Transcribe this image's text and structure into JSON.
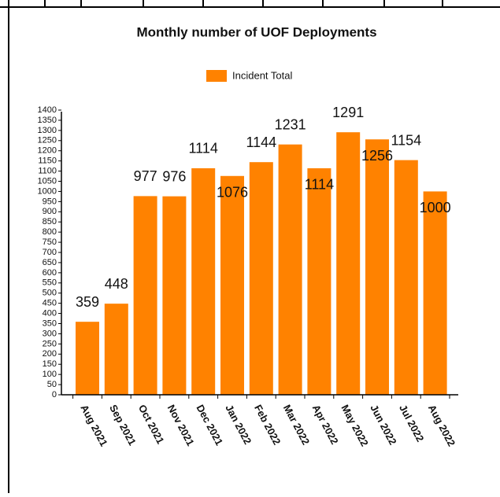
{
  "chart_data": {
    "type": "bar",
    "title": "Monthly number of UOF Deployments",
    "categories": [
      "Aug 2021",
      "Sep 2021",
      "Oct 2021",
      "Nov 2021",
      "Dec 2021",
      "Jan 2022",
      "Feb 2022",
      "Mar 2022",
      "Apr 2022",
      "May 2022",
      "Jun 2022",
      "Jul 2022",
      "Aug 2022"
    ],
    "series": [
      {
        "name": "Incident Total",
        "color": "#ff8200",
        "values": [
          359,
          448,
          977,
          976,
          1114,
          1076,
          1144,
          1231,
          1114,
          1291,
          1256,
          1154,
          1000
        ]
      }
    ],
    "ylim": [
      0,
      1400
    ],
    "yticks": [
      0,
      50,
      100,
      150,
      200,
      250,
      300,
      350,
      400,
      450,
      500,
      550,
      600,
      650,
      700,
      750,
      800,
      850,
      900,
      950,
      1000,
      1050,
      1100,
      1150,
      1200,
      1250,
      1300,
      1350,
      1400
    ],
    "legend": "top"
  }
}
